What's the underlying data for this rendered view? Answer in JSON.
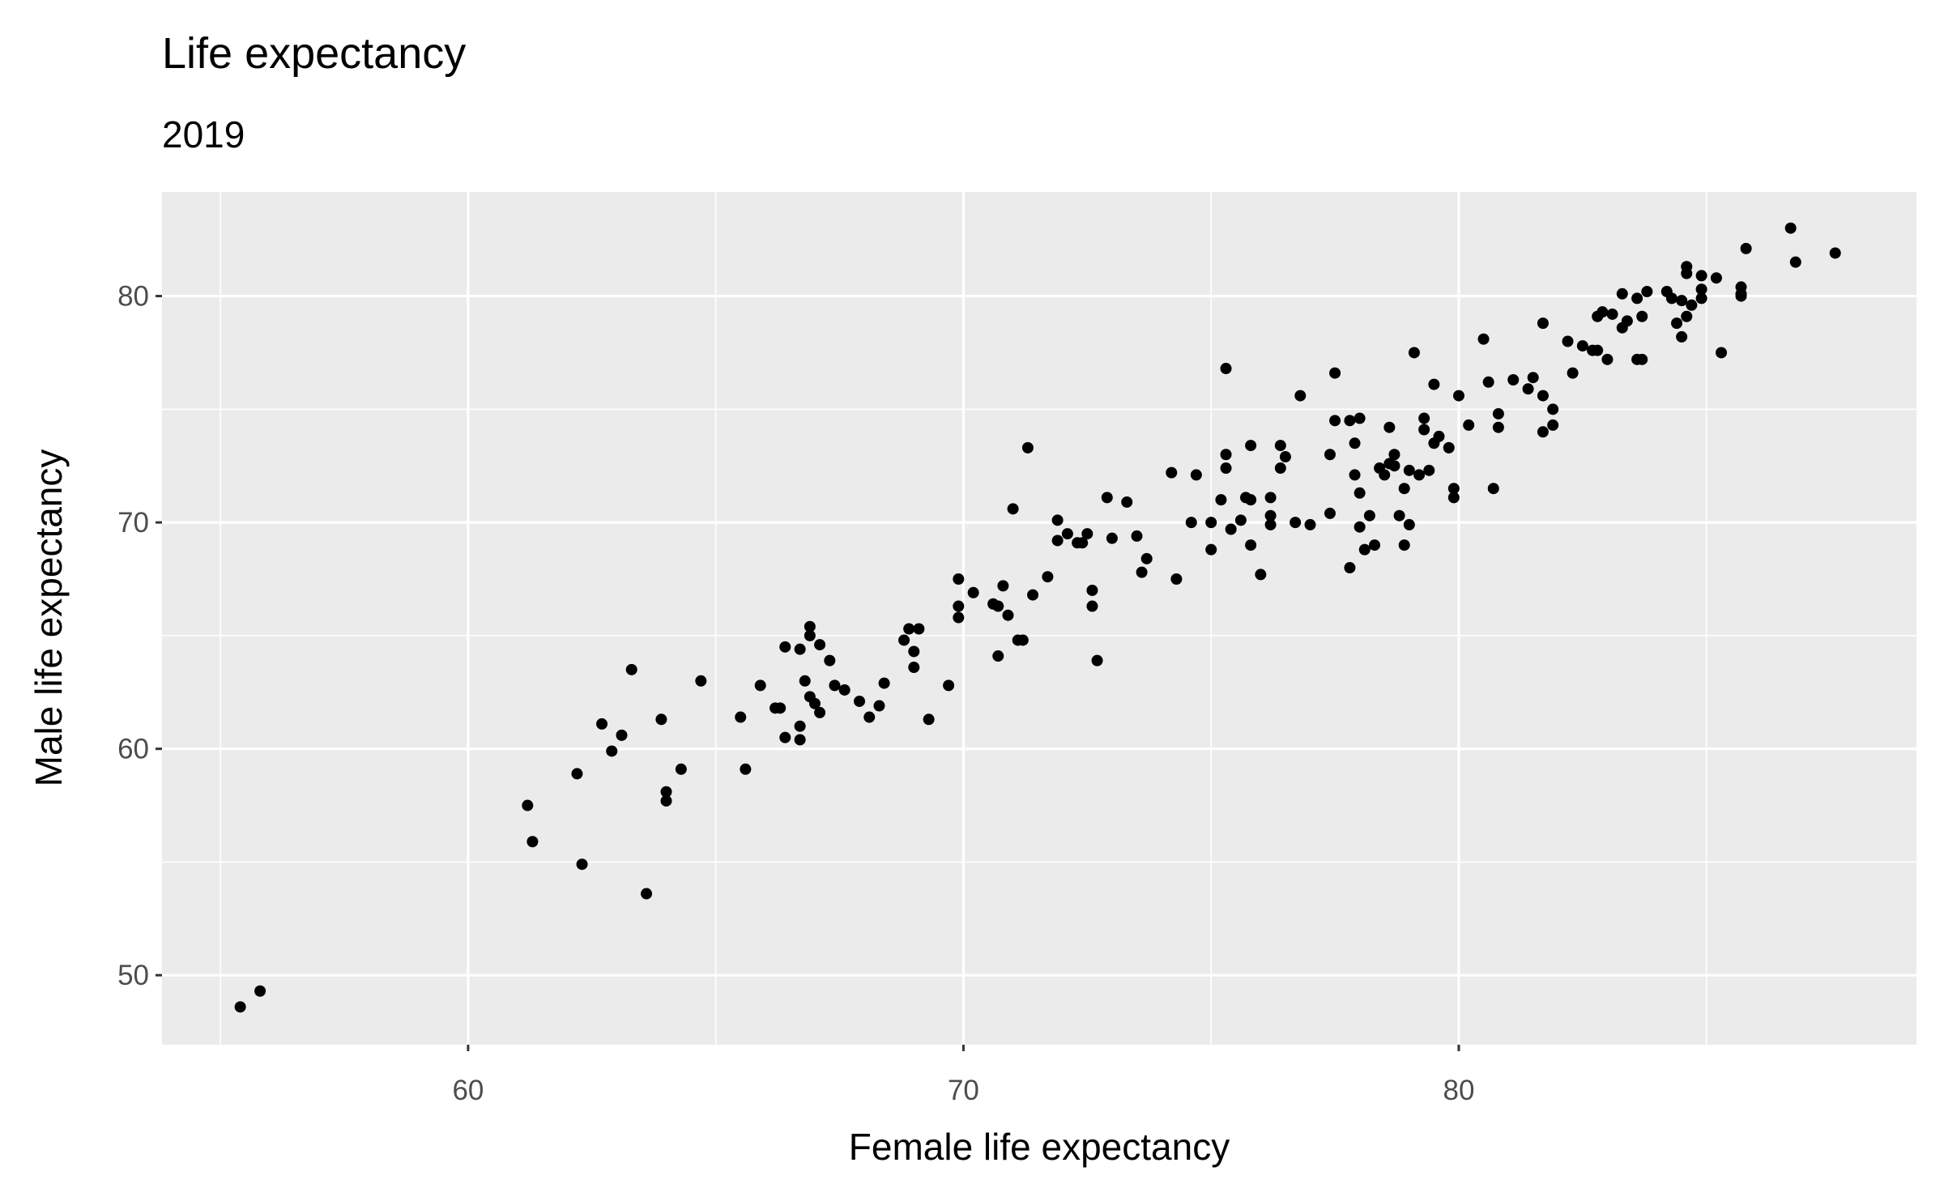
{
  "chart_data": {
    "type": "scatter",
    "title": "Life expectancy",
    "subtitle": "2019",
    "x_label": "Female life expectancy",
    "y_label": "Male life expectancy",
    "xlim": [
      53.82,
      89.24
    ],
    "ylim": [
      46.93,
      84.6
    ],
    "xticks": [
      60,
      70,
      80
    ],
    "yticks": [
      50,
      60,
      70,
      80
    ],
    "x_minor_grid": [
      55,
      65,
      75,
      85
    ],
    "y_minor_grid": [
      55,
      65,
      75
    ],
    "grid": true,
    "color": "#000000",
    "x": [
      55.4,
      55.8,
      61.2,
      61.3,
      62.2,
      62.3,
      62.7,
      62.9,
      63.1,
      63.3,
      63.6,
      63.9,
      64.0,
      64.0,
      64.3,
      64.7,
      65.5,
      65.6,
      65.9,
      66.2,
      66.3,
      66.4,
      66.4,
      66.7,
      66.7,
      66.7,
      66.8,
      66.9,
      66.9,
      66.9,
      67.0,
      67.1,
      67.1,
      67.3,
      67.4,
      67.6,
      67.9,
      68.1,
      68.3,
      68.4,
      68.8,
      68.9,
      69.0,
      69.0,
      69.1,
      69.3,
      69.7,
      69.9,
      69.9,
      69.9,
      70.2,
      70.6,
      70.7,
      70.7,
      70.8,
      70.9,
      71.0,
      71.1,
      71.2,
      71.3,
      71.4,
      71.7,
      71.9,
      71.9,
      72.1,
      72.3,
      72.4,
      72.5,
      72.6,
      72.6,
      72.7,
      72.9,
      73.0,
      73.3,
      73.5,
      73.6,
      73.7,
      74.2,
      74.3,
      74.6,
      74.7,
      75.0,
      75.0,
      75.2,
      75.3,
      75.3,
      75.3,
      75.4,
      75.6,
      75.7,
      75.8,
      75.8,
      75.8,
      76.0,
      76.2,
      76.2,
      76.2,
      76.4,
      76.4,
      76.5,
      76.7,
      76.8,
      77.0,
      77.4,
      77.4,
      77.5,
      77.5,
      77.8,
      77.8,
      77.9,
      77.9,
      78.0,
      78.0,
      78.0,
      78.1,
      78.2,
      78.3,
      78.4,
      78.5,
      78.6,
      78.6,
      78.7,
      78.7,
      78.8,
      78.9,
      78.9,
      79.0,
      79.0,
      79.1,
      79.2,
      79.3,
      79.3,
      79.4,
      79.5,
      79.5,
      79.6,
      79.8,
      79.9,
      79.9,
      80.0,
      80.2,
      80.5,
      80.6,
      80.7,
      80.8,
      80.8,
      81.1,
      81.4,
      81.5,
      81.7,
      81.7,
      81.7,
      81.9,
      81.9,
      82.2,
      82.3,
      82.5,
      82.7,
      82.8,
      82.8,
      82.9,
      83.0,
      83.1,
      83.3,
      83.3,
      83.4,
      83.6,
      83.6,
      83.7,
      83.7,
      83.8,
      84.2,
      84.3,
      84.4,
      84.5,
      84.5,
      84.6,
      84.6,
      84.6,
      84.7,
      84.9,
      84.9,
      84.9,
      85.2,
      85.3,
      85.7,
      85.7,
      85.7,
      85.8,
      86.7,
      86.8,
      87.6
    ],
    "values": [
      48.6,
      49.3,
      57.5,
      55.9,
      58.9,
      54.9,
      61.1,
      59.9,
      60.6,
      63.5,
      53.6,
      61.3,
      57.7,
      58.1,
      59.1,
      63.0,
      61.4,
      59.1,
      62.8,
      61.8,
      61.8,
      60.5,
      64.5,
      64.4,
      61.0,
      60.4,
      63.0,
      65.0,
      65.4,
      62.3,
      62.0,
      61.6,
      64.6,
      63.9,
      62.8,
      62.6,
      62.1,
      61.4,
      61.9,
      62.9,
      64.8,
      65.3,
      64.3,
      63.6,
      65.3,
      61.3,
      62.8,
      65.8,
      66.3,
      67.5,
      66.9,
      66.4,
      66.3,
      64.1,
      67.2,
      65.9,
      70.6,
      64.8,
      64.8,
      73.3,
      66.8,
      67.6,
      70.1,
      69.2,
      69.5,
      69.1,
      69.1,
      69.5,
      67.0,
      66.3,
      63.9,
      71.1,
      69.3,
      70.9,
      69.4,
      67.8,
      68.4,
      72.2,
      67.5,
      70.0,
      72.1,
      68.8,
      70.0,
      71.0,
      72.4,
      73.0,
      76.8,
      69.7,
      70.1,
      71.1,
      69.0,
      71.0,
      73.4,
      67.7,
      70.3,
      71.1,
      69.9,
      72.4,
      73.4,
      72.9,
      70.0,
      75.6,
      69.9,
      73.0,
      70.4,
      74.5,
      76.6,
      68.0,
      74.5,
      73.5,
      72.1,
      71.3,
      74.6,
      69.8,
      68.8,
      70.3,
      69.0,
      72.4,
      72.1,
      72.6,
      74.2,
      73.0,
      72.5,
      70.3,
      69.0,
      71.5,
      72.3,
      69.9,
      77.5,
      72.1,
      74.1,
      74.6,
      72.3,
      76.1,
      73.5,
      73.8,
      73.3,
      71.5,
      71.1,
      75.6,
      74.3,
      78.1,
      76.2,
      71.5,
      74.2,
      74.8,
      76.3,
      75.9,
      76.4,
      75.6,
      74.0,
      78.8,
      75.0,
      74.3,
      78.0,
      76.6,
      77.8,
      77.6,
      79.1,
      77.6,
      79.3,
      77.2,
      79.2,
      78.6,
      80.1,
      78.9,
      79.9,
      77.2,
      77.2,
      79.1,
      80.2,
      80.2,
      79.9,
      78.8,
      79.8,
      78.2,
      81.3,
      81.0,
      79.1,
      79.6,
      80.3,
      79.9,
      80.9,
      80.8,
      77.5,
      80.1,
      80.4,
      80.0,
      82.1,
      83.0,
      81.5,
      81.9
    ]
  }
}
